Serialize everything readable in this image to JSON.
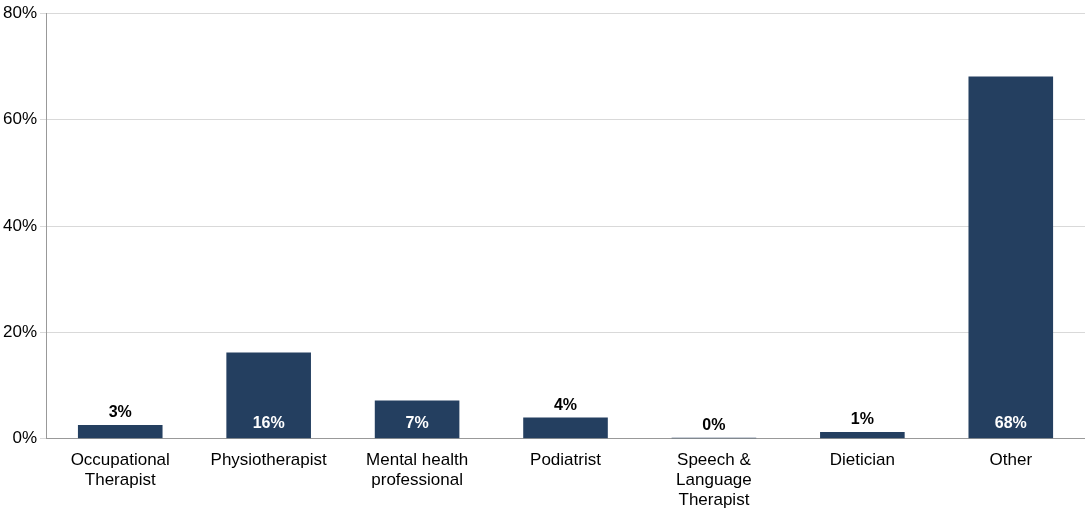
{
  "chart_data": {
    "type": "bar",
    "categories": [
      "Occupational Therapist",
      "Physiotherapist",
      "Mental health professional",
      "Podiatrist",
      "Speech & Language Therapist",
      "Dietician",
      "Other"
    ],
    "values": [
      2.6,
      16.2,
      7.2,
      4.0,
      0.2,
      1.3,
      68.1
    ],
    "value_labels": [
      "3%",
      "16%",
      "7%",
      "4%",
      "0%",
      "1%",
      "68%"
    ],
    "color": "#243f60",
    "ylim": [
      0,
      80
    ],
    "yticks": [
      {
        "value": 0,
        "label": "0%"
      },
      {
        "value": 20,
        "label": "20%"
      },
      {
        "value": 40,
        "label": "40%"
      },
      {
        "value": 60,
        "label": "60%"
      },
      {
        "value": 80,
        "label": "80%"
      }
    ],
    "grid": "y",
    "legend": false
  }
}
